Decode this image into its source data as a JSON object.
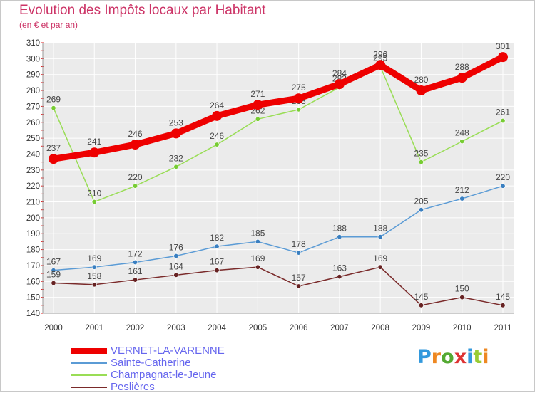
{
  "title": "Evolution des Impôts locaux par Habitant",
  "subtitle": "(en € et par an)",
  "logo_text": "Proxiti",
  "chart_data": {
    "type": "line",
    "title": "Evolution des Impôts locaux par Habitant",
    "subtitle": "(en € et par an)",
    "xlabel": "",
    "ylabel": "",
    "ylim": [
      140,
      310
    ],
    "ytick_step": 10,
    "grid": true,
    "legend_position": "bottom-left",
    "categories": [
      "2000",
      "2001",
      "2002",
      "2003",
      "2004",
      "2005",
      "2006",
      "2007",
      "2008",
      "2009",
      "2010",
      "2011"
    ],
    "yticks": [
      "140",
      "150",
      "160",
      "170",
      "180",
      "190",
      "200",
      "210",
      "220",
      "230",
      "240",
      "250",
      "260",
      "270",
      "280",
      "290",
      "300",
      "310"
    ],
    "series": [
      {
        "name": "VERNET-LA-VARENNE",
        "color": "#ee0000",
        "thick": true,
        "values": [
          237,
          241,
          246,
          253,
          264,
          271,
          275,
          284,
          296,
          280,
          288,
          301
        ]
      },
      {
        "name": "Sainte-Catherine",
        "color": "#5b9bd5",
        "marker": "#3a7fc0",
        "values": [
          167,
          169,
          172,
          176,
          182,
          185,
          178,
          188,
          188,
          205,
          212,
          220
        ]
      },
      {
        "name": "Champagnat-le-Jeune",
        "color": "#99dd55",
        "marker": "#77cc33",
        "values": [
          269,
          210,
          220,
          232,
          246,
          262,
          268,
          282,
          295,
          235,
          248,
          261
        ]
      },
      {
        "name": "Peslières",
        "color": "#7a2a2a",
        "marker": "#662222",
        "values": [
          159,
          158,
          161,
          164,
          167,
          169,
          157,
          163,
          169,
          145,
          150,
          145
        ]
      }
    ]
  }
}
